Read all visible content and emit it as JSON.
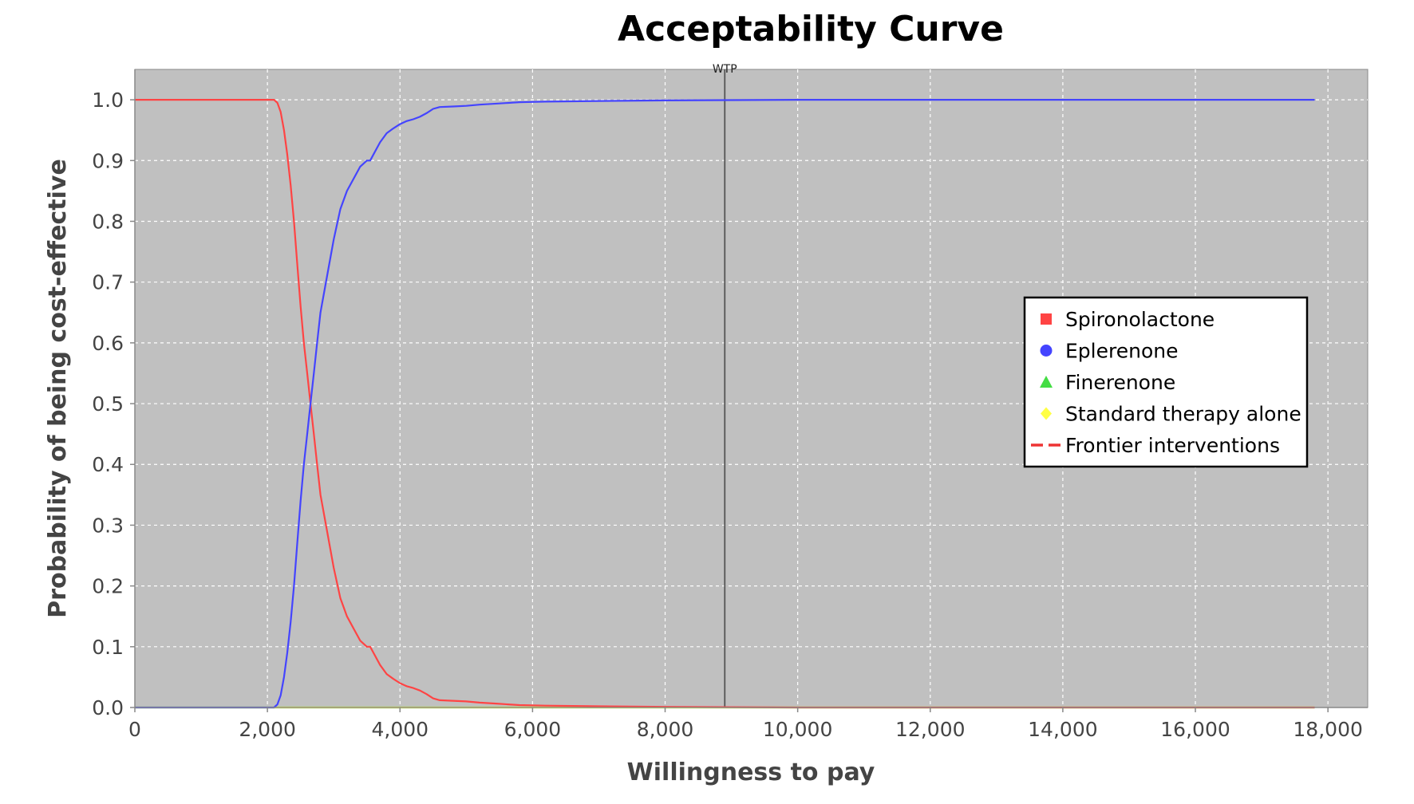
{
  "chart_data": {
    "type": "line",
    "title": "Acceptability Curve",
    "xlabel": "Willingness to pay",
    "ylabel": "Probability of being cost-effective",
    "xlim": [
      0,
      18600
    ],
    "ylim": [
      0,
      1.05
    ],
    "x_ticks": [
      0,
      2000,
      4000,
      6000,
      8000,
      10000,
      12000,
      14000,
      16000,
      18000
    ],
    "x_tick_labels": [
      "0",
      "2,000",
      "4,000",
      "6,000",
      "8,000",
      "10,000",
      "12,000",
      "14,000",
      "16,000",
      "18,000"
    ],
    "y_ticks": [
      0,
      0.1,
      0.2,
      0.3,
      0.4,
      0.5,
      0.6,
      0.7,
      0.8,
      0.9,
      1.0
    ],
    "y_tick_labels": [
      "0.0",
      "0.1",
      "0.2",
      "0.3",
      "0.4",
      "0.5",
      "0.6",
      "0.7",
      "0.8",
      "0.9",
      "1.0"
    ],
    "grid": true,
    "background_color": "#c0c0c0",
    "grid_color": "#ffffff",
    "legend_position": "right",
    "wtp_marker": {
      "x": 8900,
      "label": "WTP",
      "color": "#555555"
    },
    "series": [
      {
        "name": "Spironolactone",
        "marker": "square",
        "color": "#ff4444",
        "x": [
          0,
          2000,
          2050,
          2100,
          2150,
          2200,
          2250,
          2300,
          2350,
          2400,
          2450,
          2500,
          2550,
          2600,
          2650,
          2700,
          2750,
          2800,
          2900,
          3000,
          3100,
          3200,
          3300,
          3400,
          3500,
          3550,
          3600,
          3700,
          3800,
          3900,
          4000,
          4100,
          4200,
          4300,
          4400,
          4500,
          4600,
          4800,
          5000,
          5200,
          5500,
          5800,
          6200,
          7000,
          8000,
          10000,
          12000,
          14000,
          16000,
          17800
        ],
        "y": [
          1.0,
          1.0,
          1.0,
          1.0,
          0.995,
          0.98,
          0.95,
          0.91,
          0.86,
          0.8,
          0.73,
          0.66,
          0.6,
          0.55,
          0.5,
          0.45,
          0.4,
          0.35,
          0.29,
          0.23,
          0.18,
          0.15,
          0.13,
          0.11,
          0.1,
          0.1,
          0.09,
          0.07,
          0.055,
          0.047,
          0.04,
          0.035,
          0.032,
          0.028,
          0.022,
          0.015,
          0.012,
          0.011,
          0.01,
          0.008,
          0.006,
          0.004,
          0.003,
          0.002,
          0.001,
          0.0,
          0.0,
          0.0,
          0.0,
          0.0
        ]
      },
      {
        "name": "Eplerenone",
        "marker": "circle",
        "color": "#4444ff",
        "x": [
          0,
          2000,
          2050,
          2100,
          2150,
          2200,
          2250,
          2300,
          2350,
          2400,
          2450,
          2500,
          2550,
          2600,
          2650,
          2700,
          2750,
          2800,
          2900,
          3000,
          3100,
          3200,
          3300,
          3400,
          3500,
          3550,
          3600,
          3700,
          3800,
          3900,
          4000,
          4100,
          4200,
          4300,
          4400,
          4500,
          4600,
          4800,
          5000,
          5200,
          5500,
          5800,
          6200,
          7000,
          8000,
          10000,
          12000,
          14000,
          16000,
          17800
        ],
        "y": [
          0.0,
          0.0,
          0.0,
          0.0,
          0.005,
          0.02,
          0.05,
          0.09,
          0.14,
          0.2,
          0.27,
          0.34,
          0.4,
          0.45,
          0.5,
          0.55,
          0.6,
          0.65,
          0.71,
          0.77,
          0.82,
          0.85,
          0.87,
          0.89,
          0.9,
          0.9,
          0.91,
          0.93,
          0.945,
          0.953,
          0.96,
          0.965,
          0.968,
          0.972,
          0.978,
          0.985,
          0.988,
          0.989,
          0.99,
          0.992,
          0.994,
          0.996,
          0.997,
          0.998,
          0.999,
          1.0,
          1.0,
          1.0,
          1.0,
          1.0
        ]
      },
      {
        "name": "Finerenone",
        "marker": "triangle",
        "color": "#44dd44",
        "x": [
          0,
          2000,
          4000,
          5000,
          6000,
          17800
        ],
        "y": [
          0.0,
          0.0,
          0.0,
          0.0,
          0.0,
          0.0
        ]
      },
      {
        "name": "Standard therapy alone",
        "marker": "diamond",
        "color": "#ffff44",
        "x": [
          0,
          17800
        ],
        "y": [
          0.0,
          0.0
        ]
      },
      {
        "name": "Frontier interventions",
        "marker": "dash",
        "color": "#ee3333",
        "x": [],
        "y": []
      }
    ]
  }
}
